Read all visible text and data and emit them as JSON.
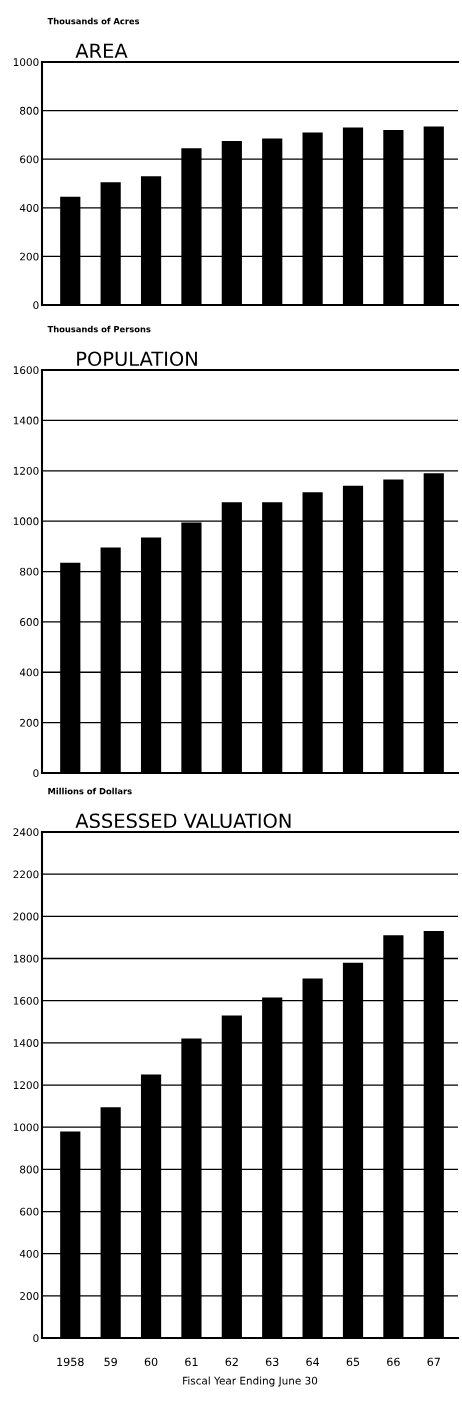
{
  "chart_data": [
    {
      "type": "bar",
      "title": "AREA",
      "ylabel": "Thousands of Acres",
      "categories": [
        "1958",
        "59",
        "60",
        "61",
        "62",
        "63",
        "64",
        "65",
        "66",
        "67"
      ],
      "values": [
        445,
        505,
        530,
        645,
        675,
        685,
        710,
        730,
        720,
        735
      ],
      "color": "#000000",
      "ylim": [
        0,
        1000
      ],
      "yticks": [
        0,
        200,
        400,
        600,
        800,
        1000
      ],
      "grid": "y",
      "tick_labels": "y"
    },
    {
      "type": "bar",
      "title": "POPULATION",
      "ylabel": "Thousands of Persons",
      "categories": [
        "1958",
        "59",
        "60",
        "61",
        "62",
        "63",
        "64",
        "65",
        "66",
        "67"
      ],
      "values": [
        835,
        895,
        935,
        995,
        1075,
        1075,
        1115,
        1140,
        1165,
        1190
      ],
      "color": "#000000",
      "ylim": [
        0,
        1600
      ],
      "yticks": [
        0,
        200,
        400,
        600,
        800,
        1000,
        1200,
        1400,
        1600
      ],
      "grid": "y",
      "tick_labels": "y"
    },
    {
      "type": "bar",
      "title": "ASSESSED VALUATION",
      "ylabel": "Millions of Dollars",
      "xlabel": "Fiscal Year Ending June 30",
      "categories": [
        "1958",
        "59",
        "60",
        "61",
        "62",
        "63",
        "64",
        "65",
        "66",
        "67"
      ],
      "values": [
        980,
        1095,
        1250,
        1420,
        1530,
        1615,
        1705,
        1780,
        1910,
        1930
      ],
      "color": "#000000",
      "ylim": [
        0,
        2400
      ],
      "yticks": [
        0,
        200,
        400,
        600,
        800,
        1000,
        1200,
        1400,
        1600,
        1800,
        2000,
        2200,
        2400
      ],
      "grid": "y"
    }
  ]
}
